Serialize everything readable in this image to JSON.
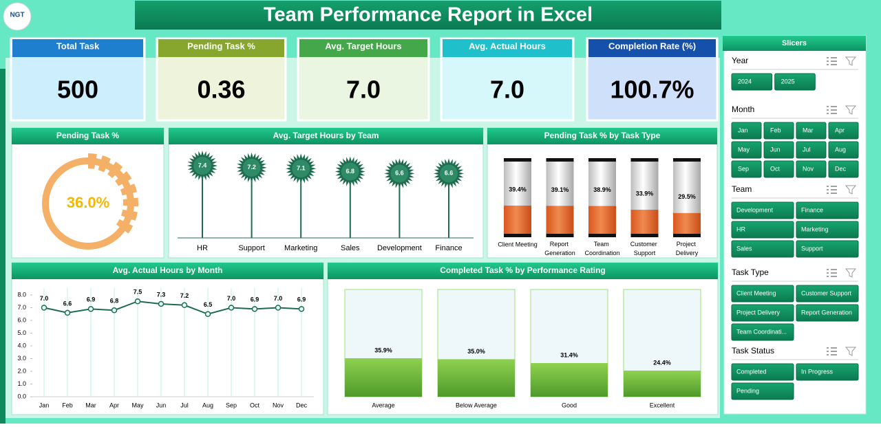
{
  "title": "Team Performance Report in Excel",
  "logo": "NGT",
  "kpis": [
    {
      "label": "Total Task",
      "value": "500"
    },
    {
      "label": "Pending Task %",
      "value": "0.36"
    },
    {
      "label": "Avg. Target Hours",
      "value": "7.0"
    },
    {
      "label": "Avg. Actual Hours",
      "value": "7.0"
    },
    {
      "label": "Completion Rate (%)",
      "value": "100.7%"
    }
  ],
  "chart_data": [
    {
      "type": "donut",
      "title": "Pending Task %",
      "values": [
        36.0
      ],
      "value_labels": [
        "36.0%"
      ],
      "color": "#f4b066"
    },
    {
      "type": "lollipop",
      "title": "Avg. Target Hours by Team",
      "categories": [
        "HR",
        "Support",
        "Marketing",
        "Sales",
        "Development",
        "Finance"
      ],
      "values": [
        7.4,
        7.2,
        7.1,
        6.8,
        6.6,
        6.6
      ],
      "color": "#1e6b4f"
    },
    {
      "type": "cylinder",
      "title": "Pending Task % by Task Type",
      "categories": [
        "Client Meeting",
        "Report Generation",
        "Team Coordination",
        "Customer Support",
        "Project Delivery"
      ],
      "values": [
        39.4,
        39.1,
        38.9,
        33.9,
        29.5
      ],
      "value_labels": [
        "39.4%",
        "39.1%",
        "38.9%",
        "33.9%",
        "29.5%"
      ],
      "ylim": [
        0,
        100
      ],
      "color": "#e8703a"
    },
    {
      "type": "line",
      "title": "Avg. Actual Hours by Month",
      "categories": [
        "Jan",
        "Feb",
        "Mar",
        "Apr",
        "May",
        "Jun",
        "Jul",
        "Aug",
        "Sep",
        "Oct",
        "Nov",
        "Dec"
      ],
      "values": [
        7.0,
        6.6,
        6.9,
        6.8,
        7.5,
        7.3,
        7.2,
        6.5,
        7.0,
        6.9,
        7.0,
        6.9
      ],
      "value_labels": [
        "7.0",
        "6.6",
        "6.9",
        "6.8",
        "7.5",
        "7.3",
        "7.2",
        "6.5",
        "7.0",
        "6.9",
        "7.0",
        "6.9"
      ],
      "ylim": [
        0,
        8
      ],
      "yticks": [
        {
          "value": 0,
          "label": "0.0"
        },
        {
          "value": 1,
          "label": "1.0"
        },
        {
          "value": 2,
          "label": "2.0"
        },
        {
          "value": 3,
          "label": "3.0"
        },
        {
          "value": 4,
          "label": "4.0"
        },
        {
          "value": 5,
          "label": "5.0"
        },
        {
          "value": 6,
          "label": "6.0"
        },
        {
          "value": 7,
          "label": "7.0"
        },
        {
          "value": 8,
          "label": "8.0"
        }
      ],
      "grid": true,
      "color": "#1e6b4f"
    },
    {
      "type": "box",
      "title": "Completed Task % by Performance Rating",
      "categories": [
        "Average",
        "Below Average",
        "Good",
        "Excellent"
      ],
      "values": [
        35.9,
        35.0,
        31.4,
        24.4
      ],
      "value_labels": [
        "35.9%",
        "35.0%",
        "31.4%",
        "24.4%"
      ],
      "ylim": [
        0,
        100
      ],
      "color": "#7cc242"
    }
  ],
  "slicers": {
    "title": "Slicers",
    "groups": [
      {
        "name": "Year",
        "items": [
          "2024",
          "2025"
        ]
      },
      {
        "name": "Month",
        "items": [
          "Jan",
          "Feb",
          "Mar",
          "Apr",
          "May",
          "Jun",
          "Jul",
          "Aug",
          "Sep",
          "Oct",
          "Nov",
          "Dec"
        ]
      },
      {
        "name": "Team",
        "items": [
          "Development",
          "Finance",
          "HR",
          "Marketing",
          "Sales",
          "Support"
        ]
      },
      {
        "name": "Task Type",
        "items": [
          "Client Meeting",
          "Customer Support",
          "Project Delivery",
          "Report Generation",
          "Team Coordinati..."
        ]
      },
      {
        "name": "Task Status",
        "items": [
          "Completed",
          "In Progress",
          "Pending"
        ]
      }
    ]
  }
}
